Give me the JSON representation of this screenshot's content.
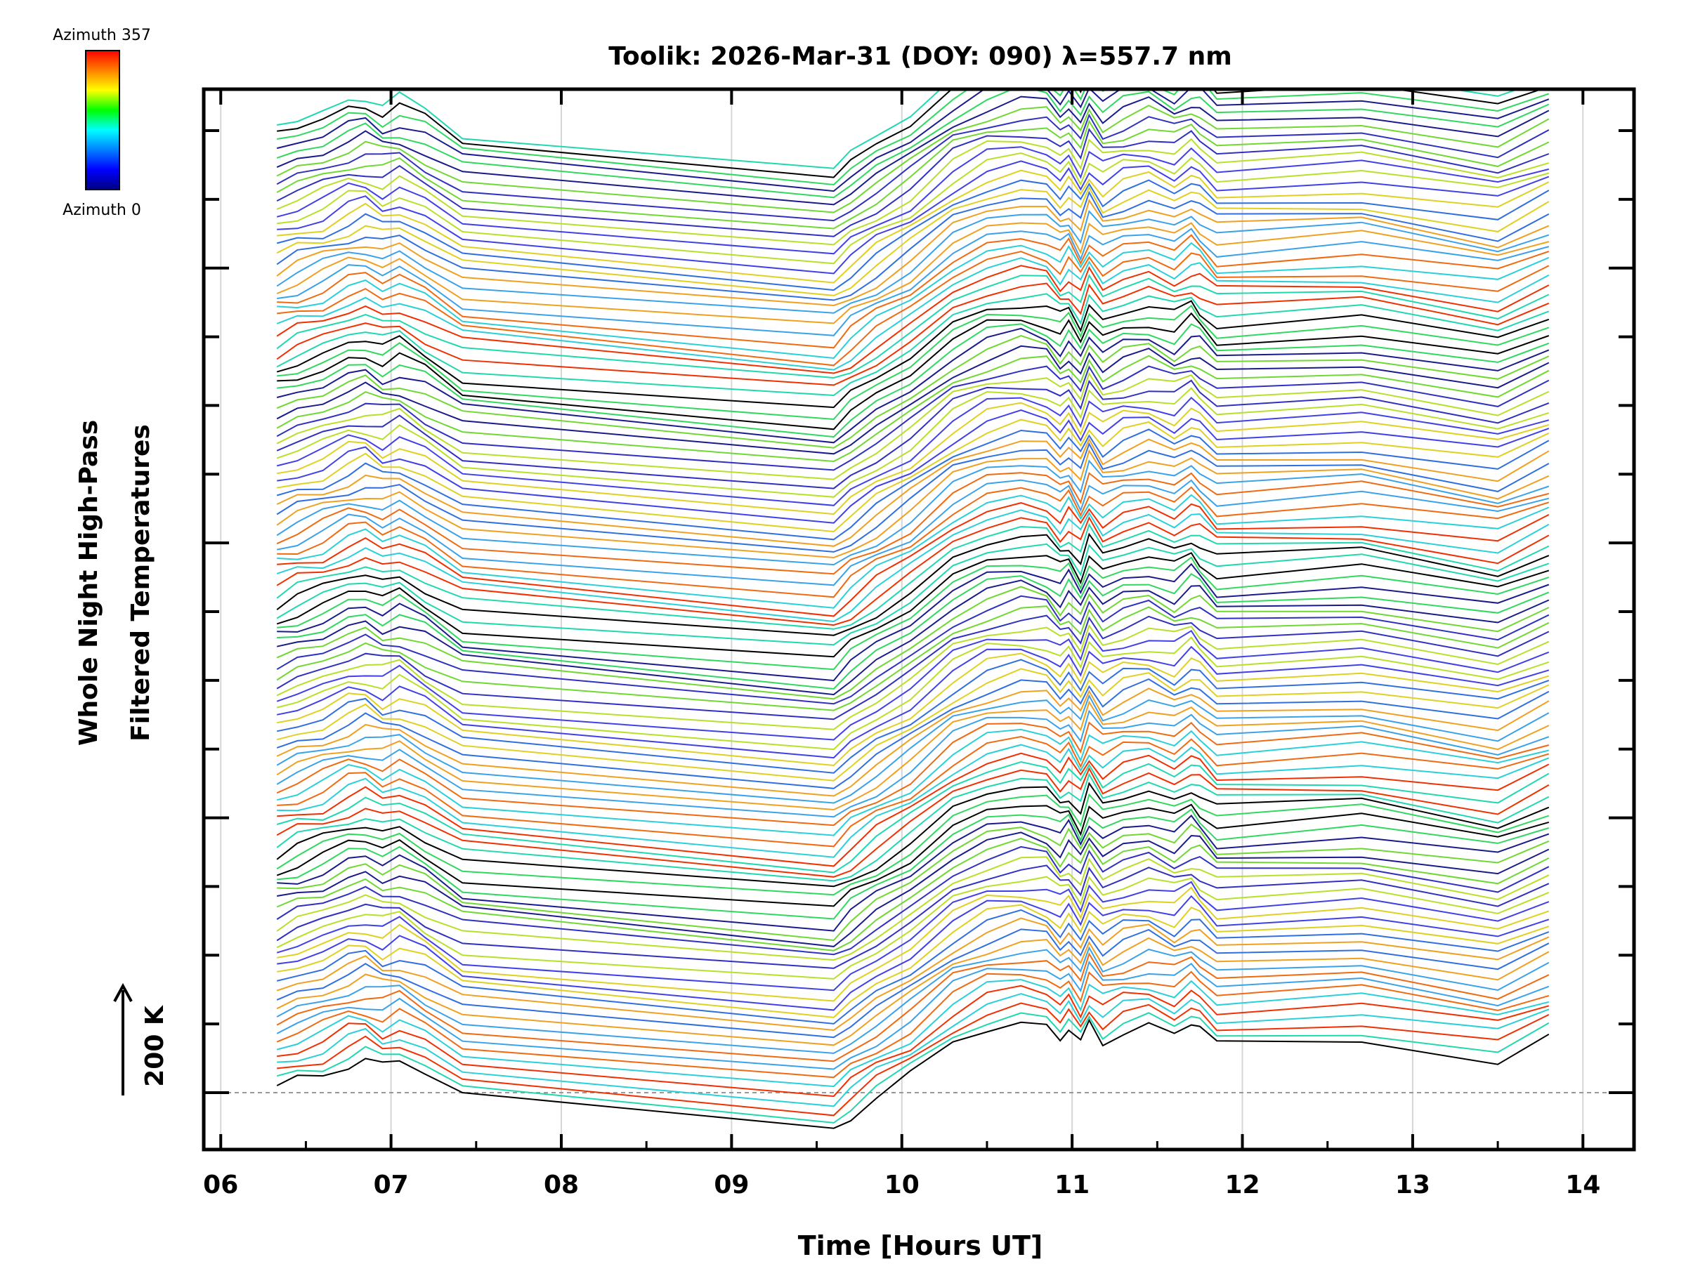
{
  "chart_data": {
    "type": "line",
    "title": "Toolik: 2026-Mar-31 (DOY: 090) λ=557.7 nm",
    "xlabel": "Time [Hours UT]",
    "ylabel_line1": "Whole Night High-Pass",
    "ylabel_line2": "Filtered Temperatures",
    "scale_label": "200 K",
    "colorbar_top": "Azimuth 357",
    "colorbar_bottom": "Azimuth 0",
    "colorbar_colors": [
      "#ff0000",
      "#ff8000",
      "#ffff00",
      "#00ff00",
      "#00ffff",
      "#0080ff",
      "#0000ff",
      "#000080"
    ],
    "xlim": [
      5.9,
      14.3
    ],
    "x_ticks": [
      "06",
      "07",
      "08",
      "09",
      "10",
      "11",
      "12",
      "13",
      "14"
    ],
    "y_tick_count": 15,
    "n_series": 120,
    "series_colors": [
      "#000000",
      "#1a1a8c",
      "#3030c0",
      "#4040e8",
      "#2f6fe0",
      "#3aa2e8",
      "#2ad0d8",
      "#20d8b0",
      "#30d860",
      "#70d830",
      "#b8e028",
      "#e0d020",
      "#f0a020",
      "#f06a10",
      "#f03000"
    ],
    "profile": {
      "time": [
        6.33,
        6.45,
        6.6,
        6.75,
        6.85,
        6.95,
        7.05,
        7.2,
        7.42,
        9.6,
        9.7,
        9.85,
        10.05,
        10.3,
        10.5,
        10.7,
        10.85,
        10.93,
        10.98,
        11.05,
        11.1,
        11.18,
        11.3,
        11.45,
        11.6,
        11.7,
        11.75,
        11.85,
        12.7,
        13.5,
        13.8
      ],
      "value": [
        0.5,
        0.58,
        0.66,
        0.78,
        0.82,
        0.74,
        0.8,
        0.66,
        0.42,
        0.08,
        0.22,
        0.4,
        0.62,
        0.98,
        1.15,
        1.22,
        1.18,
        1.05,
        1.14,
        0.96,
        1.2,
        1.02,
        1.12,
        1.18,
        1.08,
        1.2,
        1.14,
        0.98,
        1.05,
        0.82,
        1.05
      ]
    }
  }
}
